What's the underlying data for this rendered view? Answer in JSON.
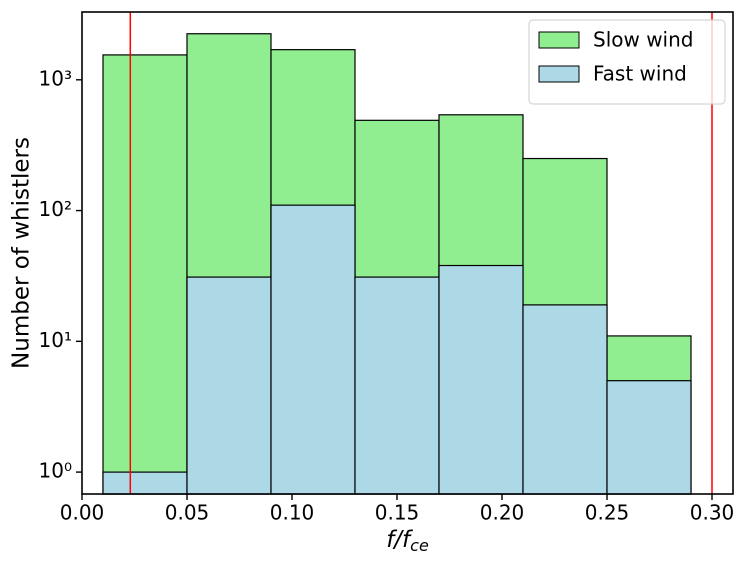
{
  "chart_data": {
    "type": "histogram",
    "xlabel": {
      "main": "f/f",
      "sub": "ce"
    },
    "ylabel": "Number of whistlers",
    "bins": [
      0.01,
      0.05,
      0.09,
      0.13,
      0.17,
      0.21,
      0.25,
      0.29
    ],
    "series": [
      {
        "name": "Slow wind",
        "color": "#90ee90",
        "values": [
          1550,
          2250,
          1700,
          490,
          540,
          250,
          11
        ]
      },
      {
        "name": "Fast wind",
        "color": "#add8e6",
        "values": [
          1,
          31,
          110,
          31,
          38,
          19,
          5
        ]
      }
    ],
    "vlines": [
      0.023,
      0.3
    ],
    "vline_color": "#ff0000",
    "xlim": [
      0,
      0.31
    ],
    "xticks": [
      {
        "value": 0,
        "label": "0.00"
      },
      0.05,
      {
        "value": 0.1,
        "label": "0.10"
      },
      0.15,
      {
        "value": 0.2,
        "label": "0.20"
      },
      0.25,
      {
        "value": 0.3,
        "label": "0.30"
      }
    ],
    "ylim": [
      0.68,
      3300
    ],
    "ylog": true,
    "yticks": [
      {
        "value": 1,
        "label": "10⁰"
      },
      {
        "value": 10,
        "label": "10¹"
      },
      {
        "value": 100,
        "label": "10²"
      },
      {
        "value": 1000,
        "label": "10³"
      }
    ],
    "legend": "upper right"
  }
}
